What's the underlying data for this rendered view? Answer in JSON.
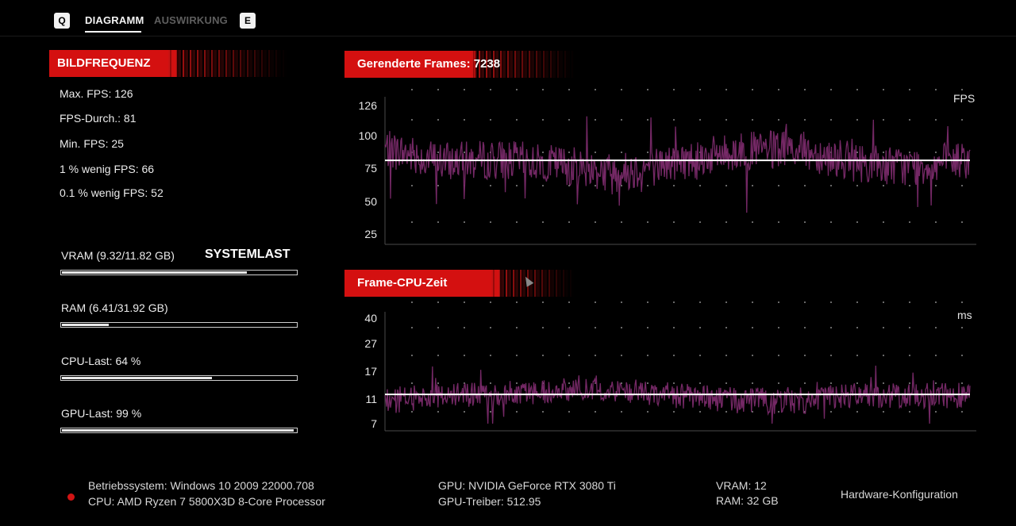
{
  "nav": {
    "left_key": "Q",
    "right_key": "E",
    "tabs": [
      {
        "label": "DIAGRAMM",
        "active": true
      },
      {
        "label": "AUSWIRKUNG",
        "active": false
      }
    ]
  },
  "framerate": {
    "title": "BILDFREQUENZ",
    "stats": [
      "Max. FPS: 126",
      "FPS-Durch.: 81",
      "Min. FPS: 25",
      "1 % wenig FPS: 66",
      "0.1 % wenig FPS: 52"
    ]
  },
  "system_load": {
    "title": "SYSTEMLAST",
    "items": [
      {
        "label": "VRAM (9.32/11.82 GB)",
        "fraction": 0.79
      },
      {
        "label": "RAM (6.41/31.92 GB)",
        "fraction": 0.2
      },
      {
        "label": "CPU-Last: 64 %",
        "fraction": 0.64
      },
      {
        "label": "GPU-Last: 99 %",
        "fraction": 0.99
      }
    ]
  },
  "charts": {
    "fps": {
      "title": "Gerenderte Frames: 7238",
      "unit": "FPS",
      "ticks": [
        "126",
        "100",
        "75",
        "50",
        "25"
      ],
      "average": 81
    },
    "cpu": {
      "title": "Frame-CPU-Zeit",
      "unit": "ms",
      "ticks": [
        "40",
        "27",
        "17",
        "11",
        "7"
      ],
      "average": 12
    }
  },
  "chart_data": [
    {
      "type": "line",
      "title": "Gerenderte Frames: 7238",
      "ylabel": "FPS",
      "y_ticks": [
        126,
        100,
        75,
        50,
        25
      ],
      "ylim": [
        25,
        126
      ],
      "series": [
        {
          "color": "#7a2a6a",
          "x": [
            0,
            10,
            20,
            30,
            40,
            50,
            60,
            70,
            80,
            90,
            100
          ],
          "values": [
            90,
            80,
            82,
            78,
            72,
            80,
            88,
            90,
            80,
            76,
            82
          ]
        },
        {
          "color": "#ffffff",
          "x": [
            0,
            100
          ],
          "values": [
            81,
            81
          ]
        }
      ],
      "grid": "dotted"
    },
    {
      "type": "line",
      "title": "Frame-CPU-Zeit",
      "ylabel": "ms",
      "y_ticks": [
        40,
        27,
        17,
        11,
        7
      ],
      "ylim": [
        7,
        40
      ],
      "series": [
        {
          "color": "#7a2a6a",
          "x": [
            0,
            10,
            20,
            30,
            40,
            50,
            60,
            70,
            80,
            90,
            100
          ],
          "values": [
            11,
            12,
            12,
            13,
            13,
            12,
            11,
            11,
            12,
            12,
            12
          ]
        },
        {
          "color": "#ffffff",
          "x": [
            0,
            100
          ],
          "values": [
            12,
            12
          ]
        }
      ],
      "grid": "dotted"
    }
  ],
  "footer": {
    "os": "Betriebssystem: Windows 10 2009 22000.708",
    "cpu": "CPU: AMD Ryzen 7 5800X3D 8-Core Processor",
    "gpu": "GPU: NVIDIA GeForce RTX 3080 Ti",
    "gpu_driver": "GPU-Treiber: 512.95",
    "vram": "VRAM: 12",
    "ram": "RAM: 32 GB",
    "hw_button": "Hardware-Konfiguration"
  },
  "colors": {
    "accent_red": "#d41010",
    "series_purple": "#7a2a6a",
    "average_line": "#ffffff"
  }
}
